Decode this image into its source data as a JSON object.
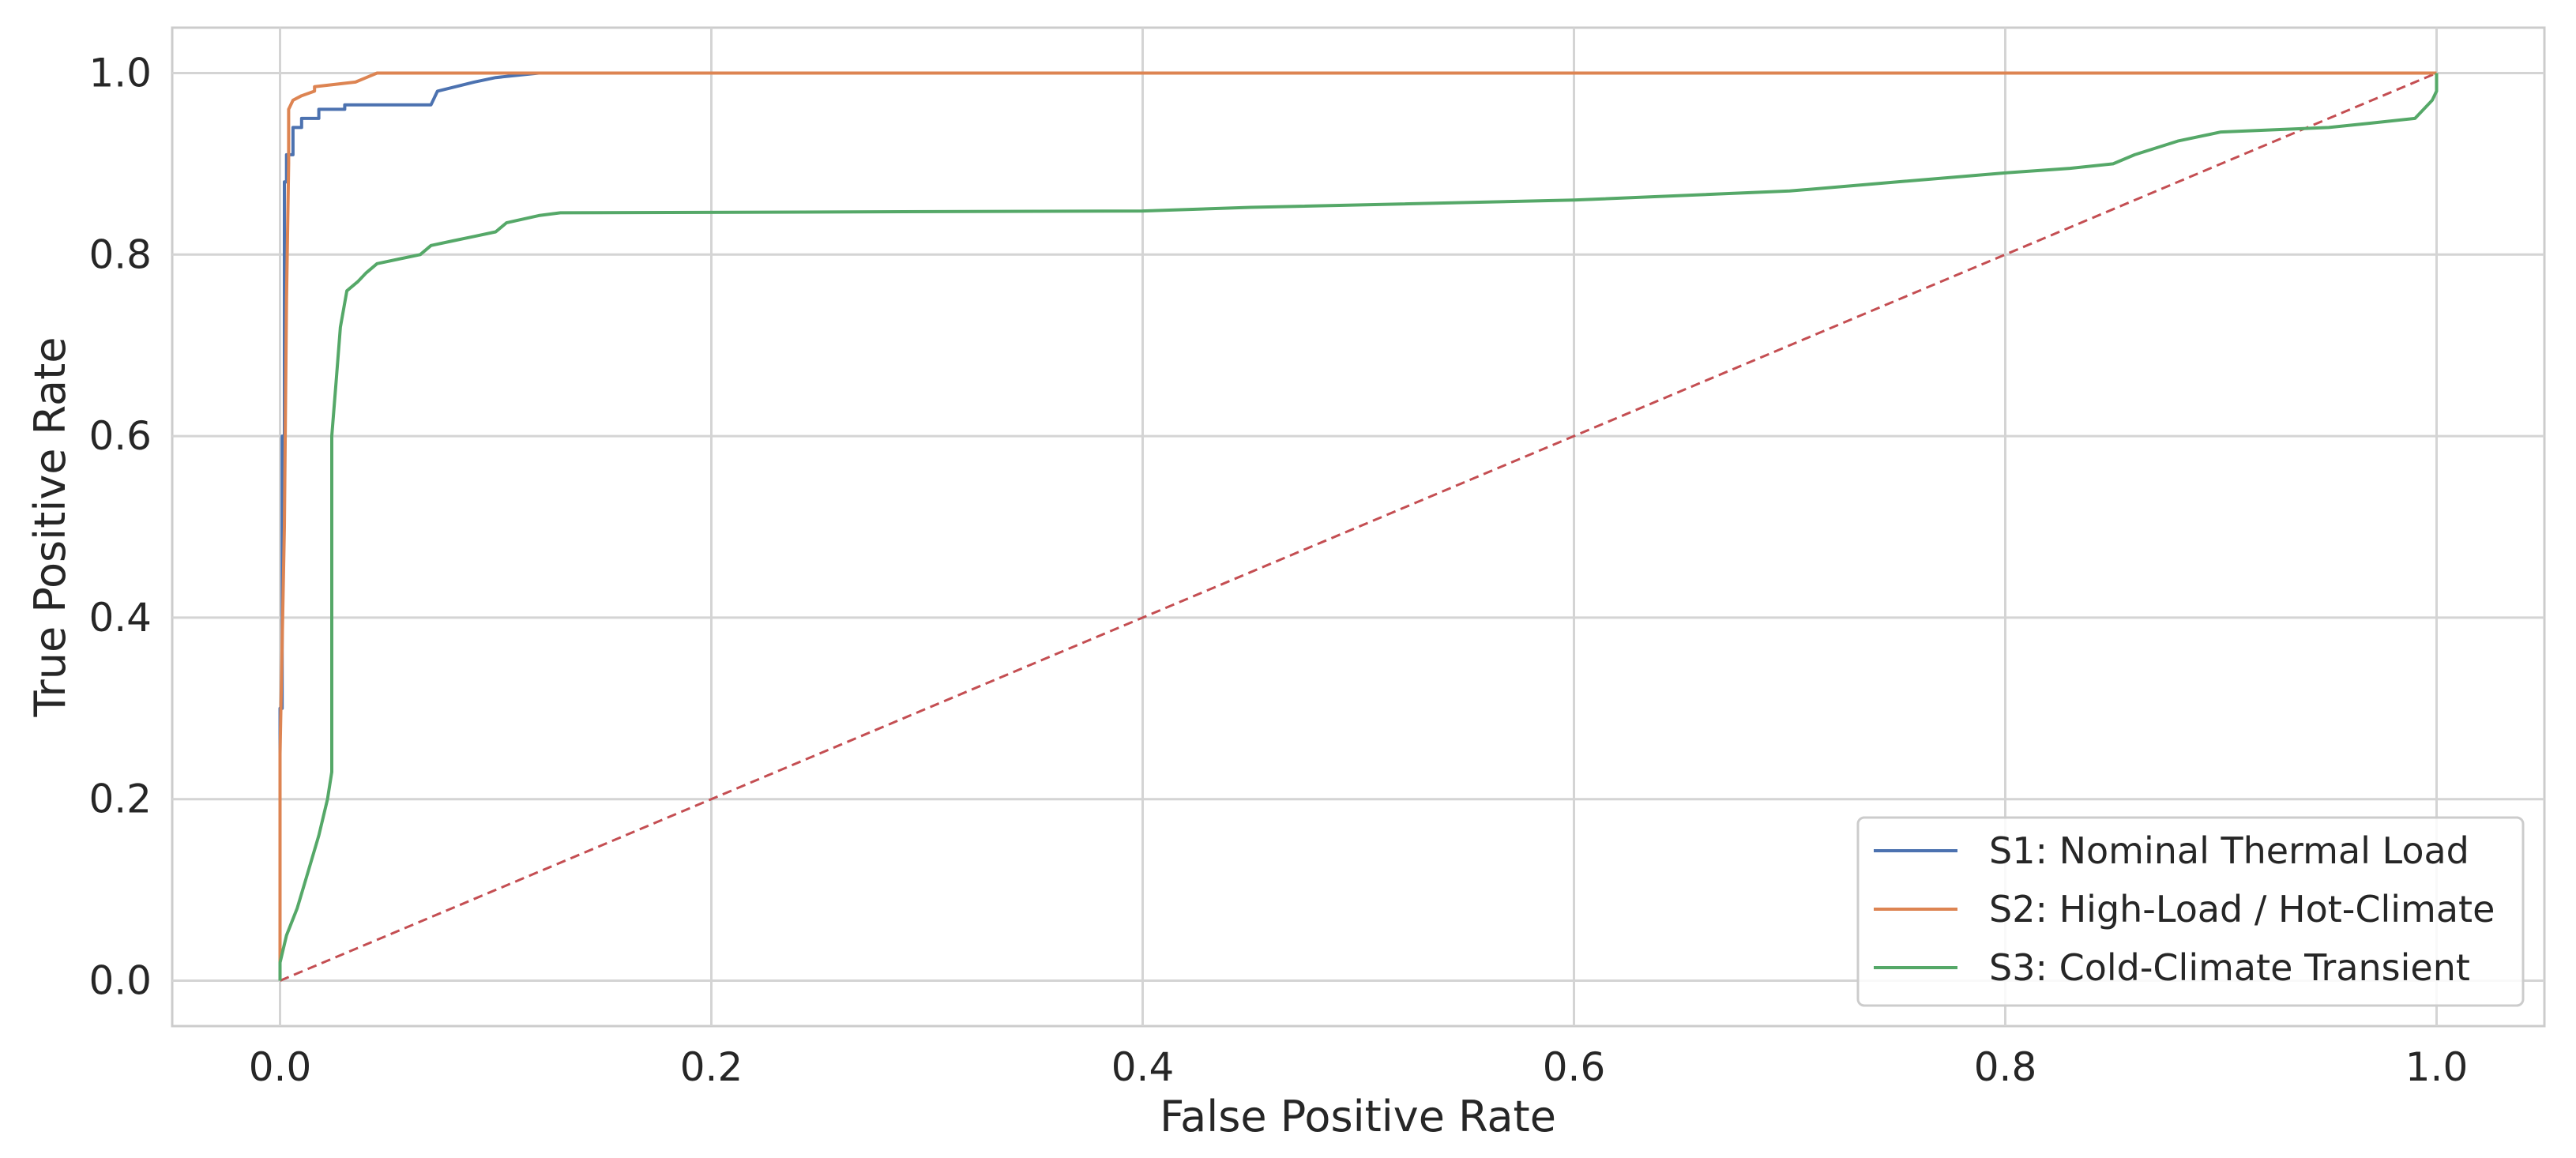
{
  "chart_data": {
    "type": "line",
    "title": "",
    "xlabel": "False Positive Rate",
    "ylabel": "True Positive Rate",
    "xlim": [
      -0.05,
      1.05
    ],
    "ylim": [
      -0.05,
      1.05
    ],
    "grid": true,
    "legend_position": "lower-right",
    "x_ticks": [
      {
        "v": 0.0,
        "label": "0.0"
      },
      {
        "v": 0.2,
        "label": "0.2"
      },
      {
        "v": 0.4,
        "label": "0.4"
      },
      {
        "v": 0.6,
        "label": "0.6"
      },
      {
        "v": 0.8,
        "label": "0.8"
      },
      {
        "v": 1.0,
        "label": "1.0"
      }
    ],
    "y_ticks": [
      {
        "v": 0.0,
        "label": "0.0"
      },
      {
        "v": 0.2,
        "label": "0.2"
      },
      {
        "v": 0.4,
        "label": "0.4"
      },
      {
        "v": 0.6,
        "label": "0.6"
      },
      {
        "v": 0.8,
        "label": "0.8"
      },
      {
        "v": 1.0,
        "label": "1.0"
      }
    ],
    "series": [
      {
        "name": "S1: Nominal Thermal Load",
        "color": "#4c72b0",
        "style": "solid",
        "points": [
          [
            0,
            0
          ],
          [
            0,
            0.3
          ],
          [
            0.001,
            0.3
          ],
          [
            0.001,
            0.6
          ],
          [
            0.002,
            0.6
          ],
          [
            0.002,
            0.88
          ],
          [
            0.003,
            0.88
          ],
          [
            0.003,
            0.91
          ],
          [
            0.006,
            0.91
          ],
          [
            0.006,
            0.94
          ],
          [
            0.01,
            0.94
          ],
          [
            0.01,
            0.95
          ],
          [
            0.018,
            0.95
          ],
          [
            0.018,
            0.96
          ],
          [
            0.03,
            0.96
          ],
          [
            0.03,
            0.965
          ],
          [
            0.07,
            0.965
          ],
          [
            0.073,
            0.98
          ],
          [
            0.09,
            0.99
          ],
          [
            0.1,
            0.995
          ],
          [
            0.12,
            1.0
          ],
          [
            1.0,
            1.0
          ]
        ]
      },
      {
        "name": "S2: High-Load / Hot-Climate",
        "color": "#dd8452",
        "style": "solid",
        "points": [
          [
            0,
            0
          ],
          [
            0,
            0.25
          ],
          [
            0.002,
            0.5
          ],
          [
            0.003,
            0.75
          ],
          [
            0.004,
            0.9
          ],
          [
            0.004,
            0.96
          ],
          [
            0.006,
            0.97
          ],
          [
            0.01,
            0.975
          ],
          [
            0.016,
            0.98
          ],
          [
            0.016,
            0.985
          ],
          [
            0.035,
            0.99
          ],
          [
            0.04,
            0.995
          ],
          [
            0.045,
            1.0
          ],
          [
            1.0,
            1.0
          ]
        ]
      },
      {
        "name": "S3: Cold-Climate Transient",
        "color": "#55a868",
        "style": "solid",
        "points": [
          [
            0,
            0
          ],
          [
            0,
            0.02
          ],
          [
            0.003,
            0.05
          ],
          [
            0.008,
            0.08
          ],
          [
            0.013,
            0.12
          ],
          [
            0.018,
            0.16
          ],
          [
            0.022,
            0.2
          ],
          [
            0.024,
            0.23
          ],
          [
            0.024,
            0.6
          ],
          [
            0.026,
            0.66
          ],
          [
            0.028,
            0.72
          ],
          [
            0.031,
            0.76
          ],
          [
            0.036,
            0.77
          ],
          [
            0.04,
            0.78
          ],
          [
            0.045,
            0.79
          ],
          [
            0.055,
            0.795
          ],
          [
            0.065,
            0.8
          ],
          [
            0.07,
            0.81
          ],
          [
            0.08,
            0.815
          ],
          [
            0.09,
            0.82
          ],
          [
            0.1,
            0.825
          ],
          [
            0.105,
            0.835
          ],
          [
            0.12,
            0.843
          ],
          [
            0.13,
            0.846
          ],
          [
            0.4,
            0.848
          ],
          [
            0.45,
            0.852
          ],
          [
            0.6,
            0.86
          ],
          [
            0.7,
            0.87
          ],
          [
            0.75,
            0.88
          ],
          [
            0.8,
            0.89
          ],
          [
            0.83,
            0.895
          ],
          [
            0.85,
            0.9
          ],
          [
            0.86,
            0.91
          ],
          [
            0.88,
            0.925
          ],
          [
            0.9,
            0.935
          ],
          [
            0.95,
            0.94
          ],
          [
            0.97,
            0.945
          ],
          [
            0.99,
            0.95
          ],
          [
            0.998,
            0.97
          ],
          [
            1.0,
            0.98
          ],
          [
            1.0,
            1.0
          ]
        ]
      },
      {
        "name": "",
        "color": "#c44e52",
        "style": "dashed",
        "points": [
          [
            0,
            0
          ],
          [
            1,
            1
          ]
        ]
      }
    ]
  }
}
